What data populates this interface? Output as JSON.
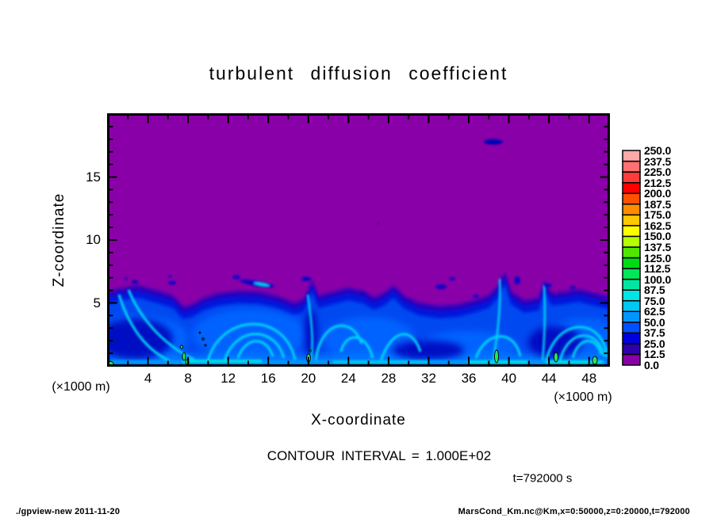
{
  "page": {
    "background": "#FFFFFF"
  },
  "chart_data": {
    "type": "heatmap",
    "title": "turbulent diffusion coefficient",
    "xlabel": "X-coordinate",
    "ylabel": "Z-coordinate",
    "x_axis": {
      "factor": "(×1000 m)",
      "min": 0,
      "max": 50,
      "major_tick_step": 4,
      "minor_tick_step": 2,
      "major_ticks": [
        "4",
        "8",
        "12",
        "16",
        "20",
        "24",
        "28",
        "32",
        "36",
        "40",
        "44",
        "48"
      ]
    },
    "y_axis": {
      "factor": "(×1000 m)",
      "min": 0,
      "max": 20,
      "major_tick_step": 5,
      "minor_tick_step": 1,
      "major_ticks": [
        "5",
        "10",
        "15"
      ]
    },
    "colorbar": {
      "min": 0,
      "max": 250,
      "step": 12.5,
      "labels_top_to_bottom": [
        "250.0",
        "237.5",
        "225.0",
        "212.5",
        "200.0",
        "187.5",
        "175.0",
        "162.5",
        "150.0",
        "137.5",
        "125.0",
        "112.5",
        "100.0",
        "87.5",
        "75.0",
        "62.5",
        "50.0",
        "37.5",
        "25.0",
        "12.5",
        "0.0"
      ],
      "colors_low_to_high": [
        "#8A00A8",
        "#2E00AC",
        "#0000DC",
        "#0050FF",
        "#0096FF",
        "#00C8F5",
        "#00E6E6",
        "#00E6A0",
        "#00E65A",
        "#00DC14",
        "#50E600",
        "#B4FF00",
        "#FFFF00",
        "#FFC800",
        "#FF8C00",
        "#FF5000",
        "#FF0000",
        "#FF3C3C",
        "#FF7070",
        "#FFA8A8"
      ]
    },
    "contour_interval_label": "CONTOUR INTERVAL = 1.000E+02",
    "time_label": "t=792000 s",
    "field": {
      "background_value_range": [
        0,
        12.5
      ],
      "background_color": "#8A00A8",
      "description": "Convective boundary layer of enhanced turbulent diffusion (values ~12.5-112.5) below z~5-7 km, purple quiescent region (value<12.5) above; vortex rolls and plumes in blue/cyan, small cores >100 outlined by the 100-contour in green near the surface.",
      "boundary_layer_top_xz": [
        [
          0,
          5.9
        ],
        [
          3,
          6.4
        ],
        [
          5,
          6.0
        ],
        [
          7.5,
          4.7
        ],
        [
          9.5,
          5.4
        ],
        [
          13,
          6.0
        ],
        [
          17,
          5.5
        ],
        [
          18.5,
          5.0
        ],
        [
          20.3,
          6.9
        ],
        [
          22.5,
          5.9
        ],
        [
          24,
          6.2
        ],
        [
          26.5,
          5.5
        ],
        [
          28.5,
          6.4
        ],
        [
          31,
          5.0
        ],
        [
          33,
          4.8
        ],
        [
          36.5,
          5.2
        ],
        [
          38,
          5.6
        ],
        [
          39.6,
          7.4
        ],
        [
          41.5,
          5.2
        ],
        [
          43,
          5.4
        ],
        [
          43.6,
          6.8
        ],
        [
          45.5,
          5.9
        ],
        [
          47,
          6.1
        ],
        [
          48.5,
          5.8
        ],
        [
          50,
          5.5
        ]
      ],
      "detached_patches_xz": [
        [
          2.7,
          6.7
        ],
        [
          6.4,
          6.6
        ],
        [
          13.5,
          6.9
        ],
        [
          16.3,
          6.3
        ],
        [
          19.8,
          6.9
        ],
        [
          25.5,
          5.8
        ],
        [
          33.2,
          6.3
        ],
        [
          34.3,
          6.9
        ],
        [
          36.7,
          5.6
        ],
        [
          40.8,
          6.9
        ],
        [
          43.9,
          6.4
        ],
        [
          46.4,
          6.2
        ],
        [
          38.7,
          17.8
        ]
      ],
      "high_value_spots_x": [
        0.2,
        7.6,
        20.0,
        38.8,
        44.7,
        48.6
      ],
      "max_plotted_value_approx": 112.5
    }
  },
  "footer": {
    "left": "./gpview-new  2011-11-20",
    "right": "MarsCond_Km.nc@Km,x=0:50000,z=0:20000,t=792000"
  }
}
